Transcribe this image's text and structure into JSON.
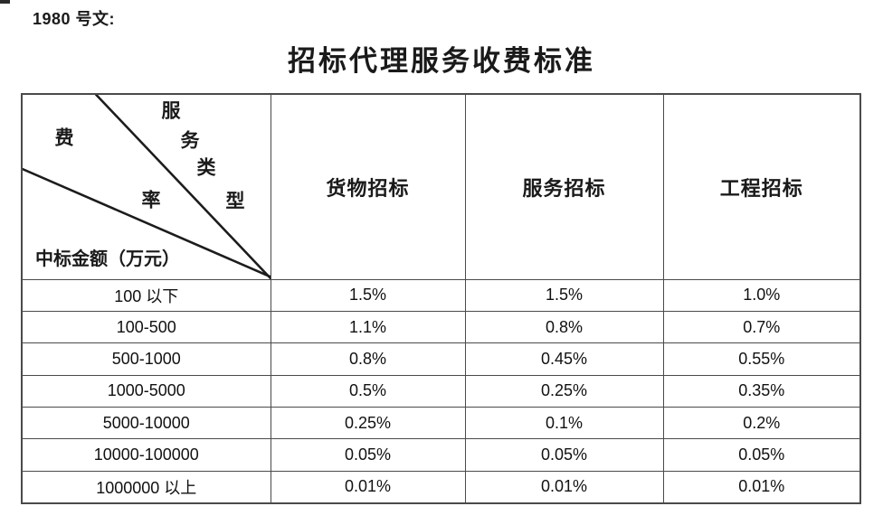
{
  "page": {
    "doc_ref": "1980 号文:",
    "title": "招标代理服务收费标准"
  },
  "colors": {
    "table_border": "#4a4a4a",
    "text": "#1a1a1a"
  },
  "table": {
    "corner": {
      "fee_char": "费",
      "rate_char": "率",
      "service_type_chars": [
        "服",
        "务",
        "类",
        "型"
      ],
      "row_axis_label": "中标金额（万元）"
    },
    "columns": [
      "货物招标",
      "服务招标",
      "工程招标"
    ],
    "rows": [
      [
        "100 以下",
        "1.5%",
        "1.5%",
        "1.0%"
      ],
      [
        "100-500",
        "1.1%",
        "0.8%",
        "0.7%"
      ],
      [
        "500-1000",
        "0.8%",
        "0.45%",
        "0.55%"
      ],
      [
        "1000-5000",
        "0.5%",
        "0.25%",
        "0.35%"
      ],
      [
        "5000-10000",
        "0.25%",
        "0.1%",
        "0.2%"
      ],
      [
        "10000-100000",
        "0.05%",
        "0.05%",
        "0.05%"
      ],
      [
        "1000000 以上",
        "0.01%",
        "0.01%",
        "0.01%"
      ]
    ]
  }
}
